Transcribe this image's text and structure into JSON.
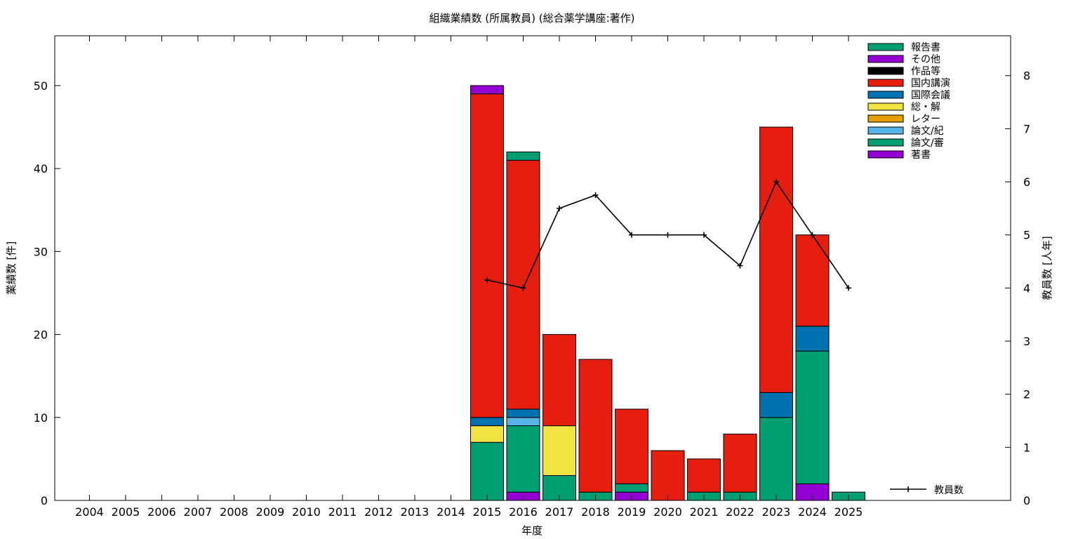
{
  "chart_data": {
    "type": "bar",
    "stacked": true,
    "title": "組織業績数 (所属教員) (総合薬学講座:著作)",
    "xlabel": "年度",
    "ylabel": "業績数 [件]",
    "y2label": "教員数 [人年]",
    "ylim": [
      0,
      56
    ],
    "y2lim": [
      0,
      8.75
    ],
    "yticks": [
      0,
      10,
      20,
      30,
      40,
      50
    ],
    "y2ticks": [
      0,
      1,
      2,
      3,
      4,
      5,
      6,
      7,
      8
    ],
    "categories": [
      "2004",
      "2005",
      "2006",
      "2007",
      "2008",
      "2009",
      "2010",
      "2011",
      "2012",
      "2013",
      "2014",
      "2015",
      "2016",
      "2017",
      "2018",
      "2019",
      "2020",
      "2021",
      "2022",
      "2023",
      "2024",
      "2025"
    ],
    "series": [
      {
        "name": "著書",
        "color": "#9400d3",
        "values": [
          0,
          0,
          0,
          0,
          0,
          0,
          0,
          0,
          0,
          0,
          0,
          0,
          1,
          0,
          0,
          1,
          0,
          0,
          0,
          0,
          2,
          0
        ]
      },
      {
        "name": "論文/審",
        "color": "#009e73",
        "values": [
          0,
          0,
          0,
          0,
          0,
          0,
          0,
          0,
          0,
          0,
          0,
          7,
          8,
          3,
          1,
          1,
          0,
          1,
          1,
          10,
          16,
          1
        ]
      },
      {
        "name": "論文/紀",
        "color": "#56b4e9",
        "values": [
          0,
          0,
          0,
          0,
          0,
          0,
          0,
          0,
          0,
          0,
          0,
          0,
          1,
          0,
          0,
          0,
          0,
          0,
          0,
          0,
          0,
          0
        ]
      },
      {
        "name": "レター",
        "color": "#e69f00",
        "values": [
          0,
          0,
          0,
          0,
          0,
          0,
          0,
          0,
          0,
          0,
          0,
          0,
          0,
          0,
          0,
          0,
          0,
          0,
          0,
          0,
          0,
          0
        ]
      },
      {
        "name": "総・解",
        "color": "#f0e442",
        "values": [
          0,
          0,
          0,
          0,
          0,
          0,
          0,
          0,
          0,
          0,
          0,
          2,
          0,
          6,
          0,
          0,
          0,
          0,
          0,
          0,
          0,
          0
        ]
      },
      {
        "name": "国際会議",
        "color": "#0072b2",
        "values": [
          0,
          0,
          0,
          0,
          0,
          0,
          0,
          0,
          0,
          0,
          0,
          1,
          1,
          0,
          0,
          0,
          0,
          0,
          0,
          3,
          3,
          0
        ]
      },
      {
        "name": "国内講演",
        "color": "#e51e10",
        "values": [
          0,
          0,
          0,
          0,
          0,
          0,
          0,
          0,
          0,
          0,
          0,
          39,
          30,
          11,
          16,
          9,
          6,
          4,
          7,
          32,
          11,
          0
        ]
      },
      {
        "name": "作品等",
        "color": "#000000",
        "values": [
          0,
          0,
          0,
          0,
          0,
          0,
          0,
          0,
          0,
          0,
          0,
          0,
          0,
          0,
          0,
          0,
          0,
          0,
          0,
          0,
          0,
          0
        ]
      },
      {
        "name": "その他",
        "color": "#9400d3",
        "values": [
          0,
          0,
          0,
          0,
          0,
          0,
          0,
          0,
          0,
          0,
          0,
          1,
          0,
          0,
          0,
          0,
          0,
          0,
          0,
          0,
          0,
          0
        ]
      },
      {
        "name": "報告書",
        "color": "#009e73",
        "values": [
          0,
          0,
          0,
          0,
          0,
          0,
          0,
          0,
          0,
          0,
          0,
          0,
          1,
          0,
          0,
          0,
          0,
          0,
          0,
          0,
          0,
          0
        ]
      }
    ],
    "line_series": {
      "name": "教員数",
      "color": "#000000",
      "axis": "y2",
      "categories": [
        "2015",
        "2016",
        "2017",
        "2018",
        "2019",
        "2020",
        "2021",
        "2022",
        "2023",
        "2024",
        "2025"
      ],
      "values": [
        4.15,
        4.0,
        5.5,
        5.75,
        5.0,
        5.0,
        5.0,
        4.42,
        6.0,
        5.0,
        4.0
      ]
    },
    "legend_position": "top-right",
    "line_legend_position": "bottom-right",
    "grid": false
  }
}
